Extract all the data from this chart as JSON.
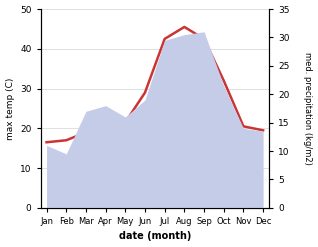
{
  "months": [
    "Jan",
    "Feb",
    "Mar",
    "Apr",
    "May",
    "Jun",
    "Jul",
    "Aug",
    "Sep",
    "Oct",
    "Nov",
    "Dec"
  ],
  "temperature": [
    16.5,
    17.0,
    19.0,
    21.5,
    21.5,
    29.0,
    42.5,
    45.5,
    42.5,
    32.0,
    20.5,
    19.5
  ],
  "precipitation": [
    11.0,
    9.5,
    17.0,
    18.0,
    16.0,
    19.0,
    29.5,
    30.5,
    31.0,
    21.5,
    14.0,
    13.5
  ],
  "temp_ylim": [
    0,
    50
  ],
  "precip_ylim": [
    0,
    35
  ],
  "temp_color": "#cc3333",
  "precip_fill_color": "#c5cce8",
  "xlabel": "date (month)",
  "ylabel_left": "max temp (C)",
  "ylabel_right": "med. precipitation (kg/m2)",
  "background_color": "#ffffff"
}
